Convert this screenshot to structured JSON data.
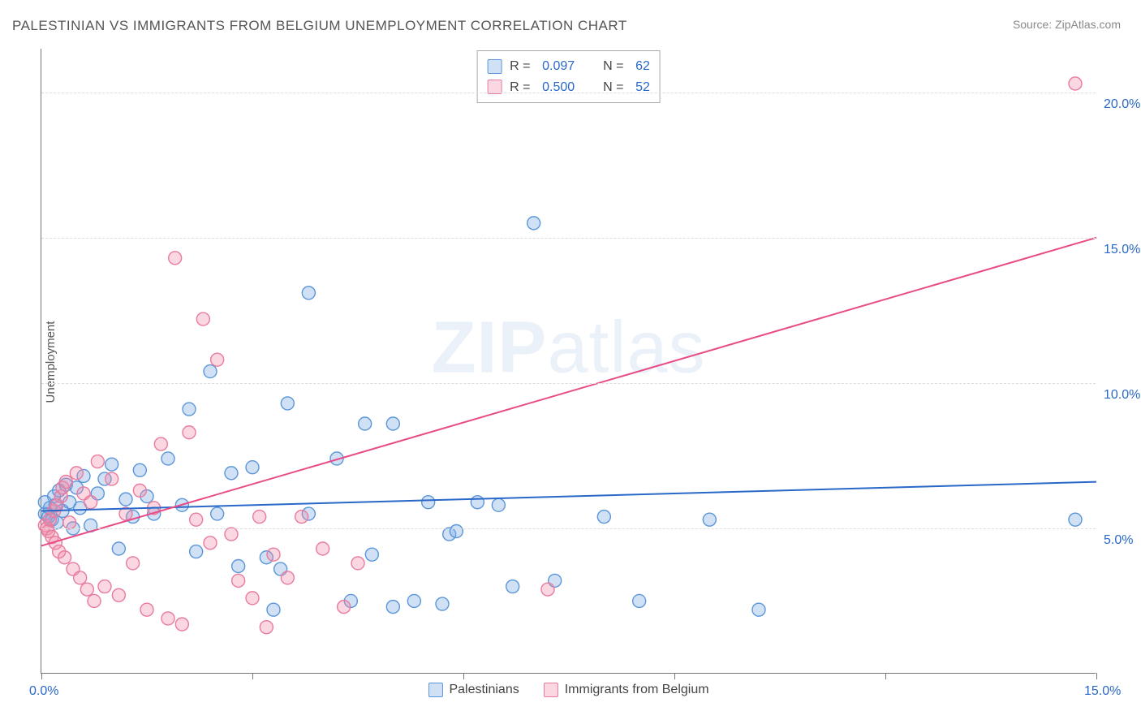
{
  "title": "PALESTINIAN VS IMMIGRANTS FROM BELGIUM UNEMPLOYMENT CORRELATION CHART",
  "source_label": "Source: ZipAtlas.com",
  "y_axis_label": "Unemployment",
  "watermark_bold": "ZIP",
  "watermark_rest": "atlas",
  "chart": {
    "type": "scatter",
    "xlim": [
      0,
      15
    ],
    "ylim": [
      0,
      21.5
    ],
    "x_ticks": [
      0,
      3,
      6,
      9,
      12,
      15
    ],
    "x_tick_labels": {
      "0": "0.0%",
      "15": "15.0%"
    },
    "y_gridlines": [
      5,
      10,
      15,
      20
    ],
    "y_tick_labels": {
      "5": "5.0%",
      "10": "10.0%",
      "15": "15.0%",
      "20": "20.0%"
    },
    "background_color": "#ffffff",
    "grid_color": "#dddddd",
    "axis_color": "#777777",
    "label_color": "#2968c8",
    "text_color": "#555555",
    "marker_radius": 8,
    "marker_stroke_width": 1.4,
    "trend_line_width": 2,
    "series": [
      {
        "id": "palestinians",
        "label": "Palestinians",
        "fill_color": "rgba(120,170,230,0.35)",
        "stroke_color": "#5b96d8",
        "line_color": "#2968c8",
        "R": "0.097",
        "N": "62",
        "trend": {
          "x1": 0,
          "y1": 5.6,
          "x2": 15,
          "y2": 6.6
        },
        "points": [
          [
            0.05,
            5.5
          ],
          [
            0.1,
            5.4
          ],
          [
            0.12,
            5.7
          ],
          [
            0.15,
            5.3
          ],
          [
            0.18,
            6.1
          ],
          [
            0.2,
            5.8
          ],
          [
            0.22,
            5.2
          ],
          [
            0.25,
            6.3
          ],
          [
            0.3,
            5.6
          ],
          [
            0.35,
            6.5
          ],
          [
            0.4,
            5.9
          ],
          [
            0.45,
            5.0
          ],
          [
            0.5,
            6.4
          ],
          [
            0.55,
            5.7
          ],
          [
            0.6,
            6.8
          ],
          [
            0.7,
            5.1
          ],
          [
            0.8,
            6.2
          ],
          [
            0.9,
            6.7
          ],
          [
            1.0,
            7.2
          ],
          [
            1.1,
            4.3
          ],
          [
            1.2,
            6.0
          ],
          [
            1.3,
            5.4
          ],
          [
            1.4,
            7.0
          ],
          [
            1.5,
            6.1
          ],
          [
            1.6,
            5.5
          ],
          [
            1.8,
            7.4
          ],
          [
            2.0,
            5.8
          ],
          [
            2.1,
            9.1
          ],
          [
            2.2,
            4.2
          ],
          [
            2.4,
            10.4
          ],
          [
            2.5,
            5.5
          ],
          [
            2.7,
            6.9
          ],
          [
            2.8,
            3.7
          ],
          [
            3.0,
            7.1
          ],
          [
            3.2,
            4.0
          ],
          [
            3.3,
            2.2
          ],
          [
            3.4,
            3.6
          ],
          [
            3.5,
            9.3
          ],
          [
            3.8,
            13.1
          ],
          [
            3.8,
            5.5
          ],
          [
            4.2,
            7.4
          ],
          [
            4.4,
            2.5
          ],
          [
            4.6,
            8.6
          ],
          [
            4.7,
            4.1
          ],
          [
            5.0,
            8.6
          ],
          [
            5.0,
            2.3
          ],
          [
            5.3,
            2.5
          ],
          [
            5.5,
            5.9
          ],
          [
            5.7,
            2.4
          ],
          [
            5.8,
            4.8
          ],
          [
            5.9,
            4.9
          ],
          [
            6.2,
            5.9
          ],
          [
            6.5,
            5.8
          ],
          [
            6.7,
            3.0
          ],
          [
            7.0,
            15.5
          ],
          [
            7.3,
            3.2
          ],
          [
            8.0,
            5.4
          ],
          [
            8.5,
            2.5
          ],
          [
            9.5,
            5.3
          ],
          [
            10.2,
            2.2
          ],
          [
            14.7,
            5.3
          ],
          [
            0.05,
            5.9
          ]
        ]
      },
      {
        "id": "belgium",
        "label": "Immigrants from Belgium",
        "fill_color": "rgba(240,140,170,0.35)",
        "stroke_color": "#e87ba0",
        "line_color": "#e84b85",
        "R": "0.500",
        "N": "52",
        "trend": {
          "x1": 0,
          "y1": 4.4,
          "x2": 15,
          "y2": 15.0
        },
        "points": [
          [
            0.05,
            5.1
          ],
          [
            0.08,
            5.0
          ],
          [
            0.1,
            4.9
          ],
          [
            0.12,
            5.3
          ],
          [
            0.15,
            4.7
          ],
          [
            0.18,
            5.6
          ],
          [
            0.2,
            4.5
          ],
          [
            0.22,
            5.8
          ],
          [
            0.25,
            4.2
          ],
          [
            0.28,
            6.1
          ],
          [
            0.3,
            6.4
          ],
          [
            0.33,
            4.0
          ],
          [
            0.35,
            6.6
          ],
          [
            0.4,
            5.2
          ],
          [
            0.45,
            3.6
          ],
          [
            0.5,
            6.9
          ],
          [
            0.55,
            3.3
          ],
          [
            0.6,
            6.2
          ],
          [
            0.65,
            2.9
          ],
          [
            0.7,
            5.9
          ],
          [
            0.75,
            2.5
          ],
          [
            0.8,
            7.3
          ],
          [
            0.9,
            3.0
          ],
          [
            1.0,
            6.7
          ],
          [
            1.1,
            2.7
          ],
          [
            1.2,
            5.5
          ],
          [
            1.3,
            3.8
          ],
          [
            1.4,
            6.3
          ],
          [
            1.5,
            2.2
          ],
          [
            1.6,
            5.7
          ],
          [
            1.7,
            7.9
          ],
          [
            1.8,
            1.9
          ],
          [
            1.9,
            14.3
          ],
          [
            2.0,
            1.7
          ],
          [
            2.1,
            8.3
          ],
          [
            2.2,
            5.3
          ],
          [
            2.3,
            12.2
          ],
          [
            2.4,
            4.5
          ],
          [
            2.5,
            10.8
          ],
          [
            2.7,
            4.8
          ],
          [
            2.8,
            3.2
          ],
          [
            3.0,
            2.6
          ],
          [
            3.1,
            5.4
          ],
          [
            3.2,
            1.6
          ],
          [
            3.3,
            4.1
          ],
          [
            3.5,
            3.3
          ],
          [
            3.7,
            5.4
          ],
          [
            4.0,
            4.3
          ],
          [
            4.3,
            2.3
          ],
          [
            4.5,
            3.8
          ],
          [
            7.2,
            2.9
          ],
          [
            14.7,
            20.3
          ]
        ]
      }
    ]
  },
  "legend": {
    "r_prefix": "R  =",
    "n_prefix": "N  ="
  }
}
